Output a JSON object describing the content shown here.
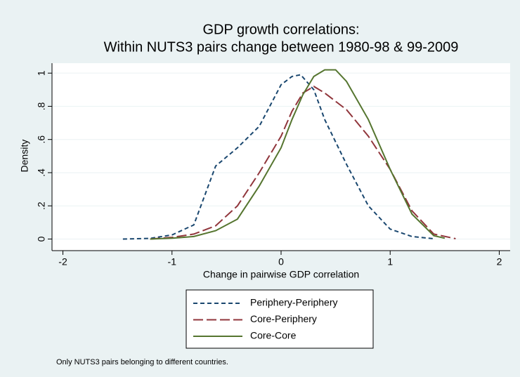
{
  "chart_data": {
    "type": "line",
    "title": "GDP growth correlations:",
    "subtitle": "Within NUTS3 pairs change between 1980-98 & 99-2009",
    "x_label": "Change in pairwise GDP correlation",
    "y_label": "Density",
    "note": "Only NUTS3 pairs belonging to different countries.",
    "xlim": [
      -2.1,
      2.1
    ],
    "xticks": [
      -2,
      -1,
      0,
      1,
      2
    ],
    "ylim": [
      -0.07,
      1.06
    ],
    "yticks": [
      0,
      {
        "value": 0.2,
        "label": ".2"
      },
      {
        "value": 0.4,
        "label": ".4"
      },
      {
        "value": 0.6,
        "label": ".6"
      },
      {
        "value": 0.8,
        "label": ".8"
      },
      1
    ],
    "grid": true,
    "series": [
      {
        "name": "Periphery-Periphery",
        "color": "#1a476f",
        "dash": "6,4",
        "x": [
          -1.45,
          -1.2,
          -1.0,
          -0.8,
          -0.6,
          -0.4,
          -0.2,
          0,
          0.1,
          0.18,
          0.3,
          0.4,
          0.6,
          0.8,
          1.0,
          1.2,
          1.4
        ],
        "values": [
          0,
          0.004,
          0.025,
          0.085,
          0.44,
          0.55,
          0.68,
          0.93,
          0.98,
          0.99,
          0.9,
          0.72,
          0.45,
          0.2,
          0.06,
          0.015,
          0.002
        ]
      },
      {
        "name": "Core-Periphery",
        "color": "#90353b",
        "dash": "14,5",
        "x": [
          -1.2,
          -1.0,
          -0.8,
          -0.6,
          -0.4,
          -0.2,
          0,
          0.1,
          0.2,
          0.3,
          0.4,
          0.6,
          0.8,
          1.0,
          1.2,
          1.4,
          1.6
        ],
        "values": [
          0,
          0.01,
          0.03,
          0.08,
          0.2,
          0.4,
          0.62,
          0.77,
          0.88,
          0.92,
          0.88,
          0.78,
          0.62,
          0.42,
          0.17,
          0.03,
          0.002
        ]
      },
      {
        "name": "Core-Core",
        "color": "#55752f",
        "dash": "none",
        "x": [
          -1.2,
          -1.0,
          -0.8,
          -0.6,
          -0.4,
          -0.2,
          0,
          0.1,
          0.2,
          0.3,
          0.4,
          0.5,
          0.6,
          0.8,
          1.0,
          1.2,
          1.4,
          1.5
        ],
        "values": [
          0,
          0.005,
          0.015,
          0.05,
          0.12,
          0.32,
          0.55,
          0.72,
          0.87,
          0.98,
          1.02,
          1.02,
          0.95,
          0.72,
          0.42,
          0.15,
          0.02,
          0.005
        ]
      }
    ]
  }
}
